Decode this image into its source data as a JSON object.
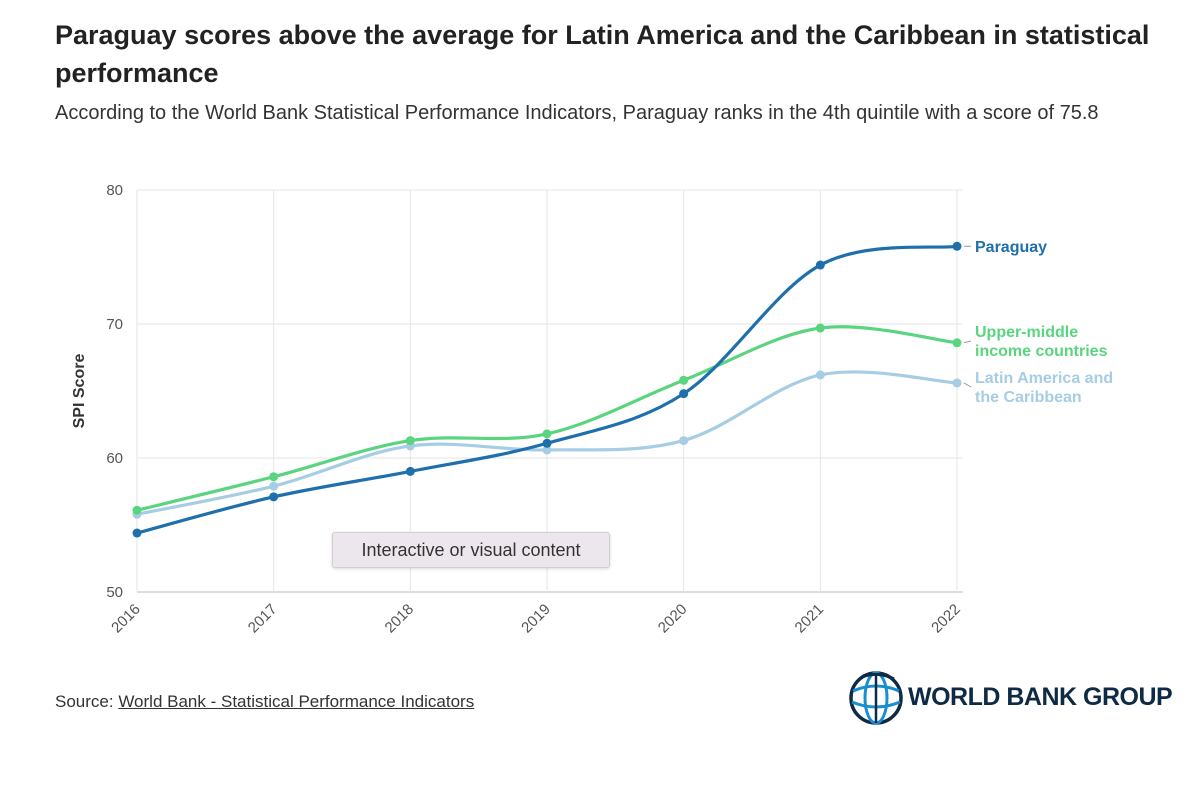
{
  "title": "Paraguay scores above the average for Latin America and the Caribbean in statistical performance",
  "subtitle": "According to the World Bank Statistical Performance Indicators, Paraguay ranks in the 4th quintile with a score of 75.8",
  "tooltip": "Interactive or visual content",
  "source": {
    "prefix": "Source: ",
    "link_text": "World Bank - Statistical Performance Indicators"
  },
  "logo": {
    "text": "WORLD BANK GROUP",
    "icon": "globe-icon"
  },
  "chart_data": {
    "type": "line",
    "x": [
      "2016",
      "2017",
      "2018",
      "2019",
      "2020",
      "2021",
      "2022"
    ],
    "ylabel": "SPI Score",
    "ylim": [
      50,
      80
    ],
    "yticks": [
      50,
      60,
      70,
      80
    ],
    "grid": true,
    "series": [
      {
        "name": "Paraguay",
        "label_lines": [
          "Paraguay"
        ],
        "color": "#1f6fad",
        "values": [
          54.4,
          57.1,
          59.0,
          61.1,
          64.8,
          74.4,
          75.8
        ]
      },
      {
        "name": "Upper-middle income countries",
        "label_lines": [
          "Upper-middle",
          "income countries"
        ],
        "color": "#5bd47f",
        "values": [
          56.1,
          58.6,
          61.3,
          61.8,
          65.8,
          69.7,
          68.6
        ]
      },
      {
        "name": "Latin America and the Caribbean",
        "label_lines": [
          "Latin America and",
          "the Caribbean"
        ],
        "color": "#a6cde3",
        "values": [
          55.8,
          57.9,
          60.9,
          60.6,
          61.3,
          66.2,
          65.6
        ]
      }
    ]
  }
}
